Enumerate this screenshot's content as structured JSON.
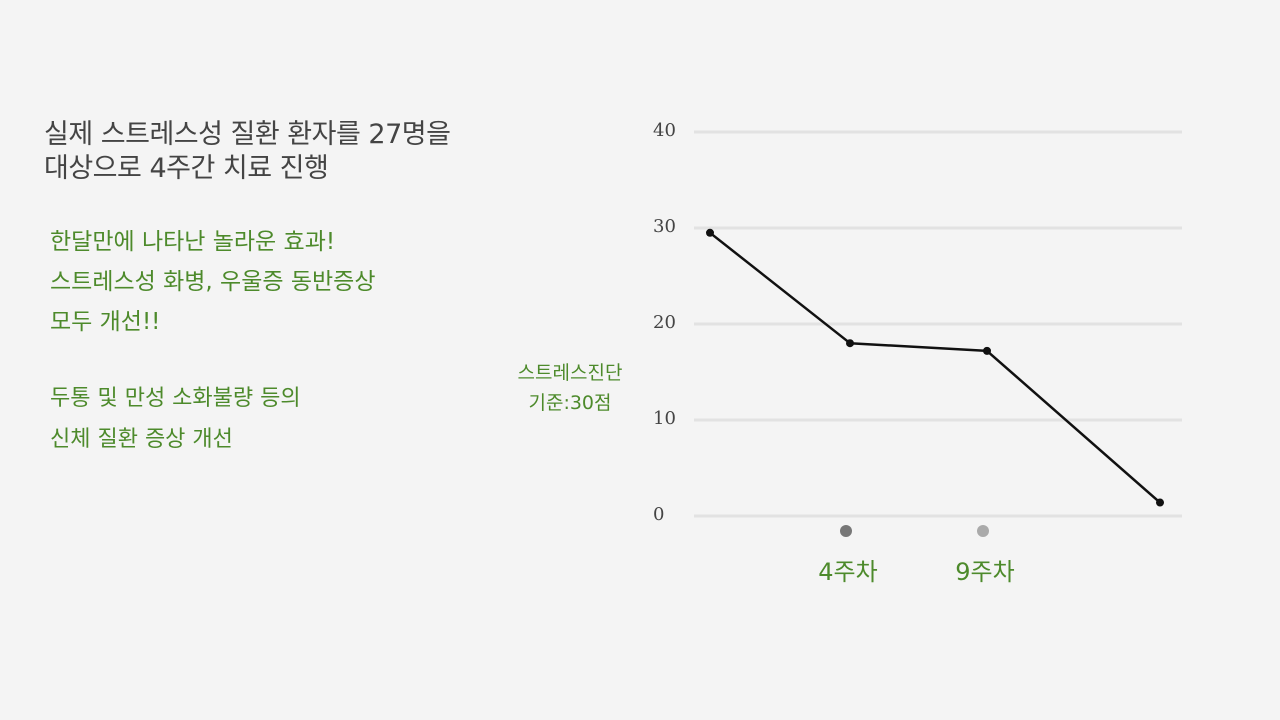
{
  "headline": {
    "line1": "실제 스트레스성 질환 환자를 27명을",
    "line2": "대상으로 4주간 치료 진행"
  },
  "highlight": {
    "line1": "한달만에 나타난 놀라운 효과!",
    "line2": "스트레스성 화병, 우울증 동반증상",
    "line3": "모두 개선!!"
  },
  "details": {
    "line1": "두통 및 만성 소화불량 등의",
    "line2": "신체 질환 증상 개선"
  },
  "chart_data": {
    "type": "line",
    "title": "",
    "ylabel_lines": [
      "스트레스진단",
      "기준:30점"
    ],
    "ylim": [
      0,
      40
    ],
    "yticks": [
      "0",
      "10",
      "20",
      "30",
      "40"
    ],
    "grid": true,
    "x_positions": [
      0,
      1,
      2,
      3
    ],
    "x_tick_labels": [
      "",
      "4주차",
      "9주차",
      ""
    ],
    "x_tick_marker_colors": [
      "",
      "#777777",
      "#aaaaaa",
      ""
    ],
    "series": [
      {
        "values": [
          29.5,
          18.0,
          17.2,
          1.4
        ],
        "color": "#111111"
      }
    ],
    "colors": {
      "grid": "#e2e2e2",
      "tick_text": "#444444",
      "accent": "#4d8a2b"
    }
  }
}
